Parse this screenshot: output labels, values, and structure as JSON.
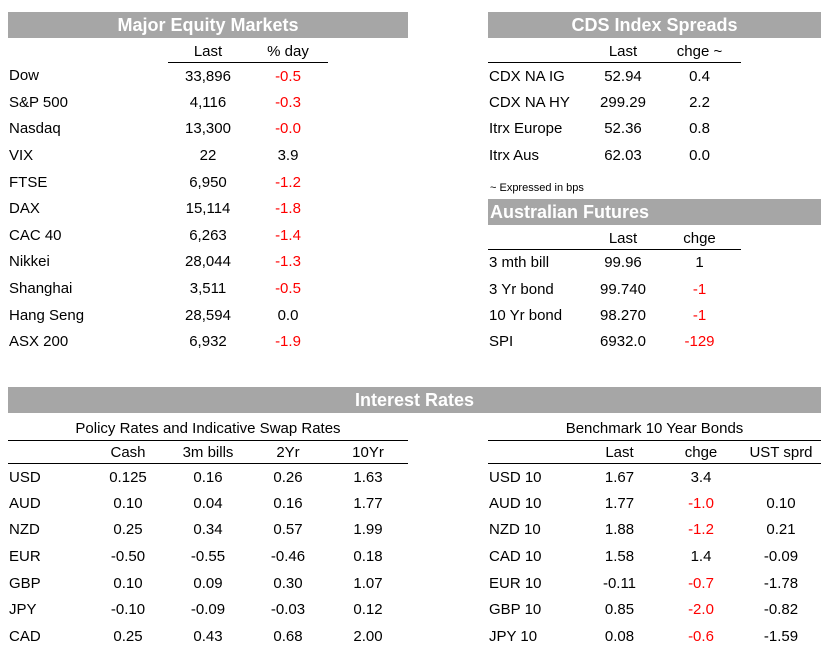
{
  "equity": {
    "title": "Major Equity Markets",
    "headers": [
      "",
      "Last",
      "% day"
    ],
    "rows": [
      {
        "name": "Dow",
        "last": "33,896",
        "chg": "-0.5",
        "neg": true
      },
      {
        "name": "S&P 500",
        "last": "4,116",
        "chg": "-0.3",
        "neg": true
      },
      {
        "name": "Nasdaq",
        "last": "13,300",
        "chg": "-0.0",
        "neg": true
      },
      {
        "name": "VIX",
        "last": "22",
        "chg": "3.9",
        "neg": false
      },
      {
        "name": "FTSE",
        "last": "6,950",
        "chg": "-1.2",
        "neg": true
      },
      {
        "name": "DAX",
        "last": "15,114",
        "chg": "-1.8",
        "neg": true
      },
      {
        "name": "CAC 40",
        "last": "6,263",
        "chg": "-1.4",
        "neg": true
      },
      {
        "name": "Nikkei",
        "last": "28,044",
        "chg": "-1.3",
        "neg": true
      },
      {
        "name": "Shanghai",
        "last": "3,511",
        "chg": "-0.5",
        "neg": true
      },
      {
        "name": "Hang Seng",
        "last": "28,594",
        "chg": "0.0",
        "neg": false
      },
      {
        "name": "ASX 200",
        "last": "6,932",
        "chg": "-1.9",
        "neg": true
      }
    ]
  },
  "cds": {
    "title": "CDS Index Spreads",
    "headers": [
      "",
      "Last",
      "chge ~"
    ],
    "rows": [
      {
        "name": "CDX NA IG",
        "last": "52.94",
        "chg": "0.4",
        "neg": false
      },
      {
        "name": "CDX NA HY",
        "last": "299.29",
        "chg": "2.2",
        "neg": false
      },
      {
        "name": "Itrx Europe",
        "last": "52.36",
        "chg": "0.8",
        "neg": false
      },
      {
        "name": "Itrx Aus",
        "last": "62.03",
        "chg": "0.0",
        "neg": false
      }
    ],
    "note": "~ Expressed in bps"
  },
  "futures": {
    "title": "Australian Futures",
    "headers": [
      "",
      "Last",
      "chge"
    ],
    "rows": [
      {
        "name": "3 mth bill",
        "last": "99.96",
        "chg": "1",
        "neg": false
      },
      {
        "name": "3 Yr bond",
        "last": "99.740",
        "chg": "-1",
        "neg": true
      },
      {
        "name": "10 Yr bond",
        "last": "98.270",
        "chg": "-1",
        "neg": true
      },
      {
        "name": "SPI",
        "last": "6932.0",
        "chg": "-129",
        "neg": true
      }
    ]
  },
  "rates": {
    "title": "Interest Rates",
    "policy": {
      "subtitle": "Policy Rates and Indicative Swap Rates",
      "headers": [
        "",
        "Cash",
        "3m bills",
        "2Yr",
        "10Yr"
      ],
      "rows": [
        {
          "name": "USD",
          "vals": [
            "0.125",
            "0.16",
            "0.26",
            "1.63"
          ]
        },
        {
          "name": "AUD",
          "vals": [
            "0.10",
            "0.04",
            "0.16",
            "1.77"
          ]
        },
        {
          "name": "NZD",
          "vals": [
            "0.25",
            "0.34",
            "0.57",
            "1.99"
          ]
        },
        {
          "name": "EUR",
          "vals": [
            "-0.50",
            "-0.55",
            "-0.46",
            "0.18"
          ]
        },
        {
          "name": "GBP",
          "vals": [
            "0.10",
            "0.09",
            "0.30",
            "1.07"
          ]
        },
        {
          "name": "JPY",
          "vals": [
            "-0.10",
            "-0.09",
            "-0.03",
            "0.12"
          ]
        },
        {
          "name": "CAD",
          "vals": [
            "0.25",
            "0.43",
            "0.68",
            "2.00"
          ]
        }
      ]
    },
    "bonds": {
      "subtitle": "Benchmark 10 Year Bonds",
      "headers": [
        "",
        "Last",
        "chge",
        "UST sprd"
      ],
      "rows": [
        {
          "name": "USD 10",
          "last": "1.67",
          "chg": "3.4",
          "neg": false,
          "sprd": ""
        },
        {
          "name": "AUD 10",
          "last": "1.77",
          "chg": "-1.0",
          "neg": true,
          "sprd": "0.10"
        },
        {
          "name": "NZD 10",
          "last": "1.88",
          "chg": "-1.2",
          "neg": true,
          "sprd": "0.21"
        },
        {
          "name": "CAD 10",
          "last": "1.58",
          "chg": "1.4",
          "neg": false,
          "sprd": "-0.09"
        },
        {
          "name": "EUR 10",
          "last": "-0.11",
          "chg": "-0.7",
          "neg": true,
          "sprd": "-1.78"
        },
        {
          "name": "GBP 10",
          "last": "0.85",
          "chg": "-2.0",
          "neg": true,
          "sprd": "-0.82"
        },
        {
          "name": "JPY 10",
          "last": "0.08",
          "chg": "-0.6",
          "neg": true,
          "sprd": "-1.59"
        }
      ]
    }
  }
}
